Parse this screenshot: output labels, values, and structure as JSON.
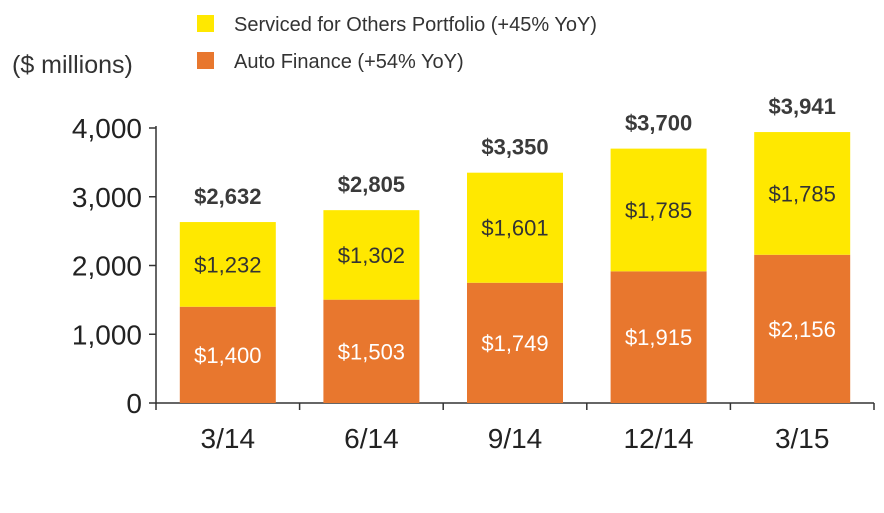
{
  "unit_label": "($ millions)",
  "legend": [
    {
      "label": "Serviced for Others Portfolio (+45% YoY)",
      "color": "#FFE800"
    },
    {
      "label": "Auto Finance (+54% YoY)",
      "color": "#E8772E"
    }
  ],
  "chart_data": {
    "type": "bar",
    "stacked": true,
    "title": "",
    "xlabel": "",
    "ylabel": "($ millions)",
    "ylim": [
      0,
      4000
    ],
    "yticks": [
      0,
      1000,
      2000,
      3000,
      4000
    ],
    "ytick_labels": [
      "0",
      "1,000",
      "2,000",
      "3,000",
      "4,000"
    ],
    "grid": false,
    "legend_position": "top",
    "categories": [
      "3/14",
      "6/14",
      "9/14",
      "12/14",
      "3/15"
    ],
    "series": [
      {
        "name": "Auto Finance (+54% YoY)",
        "color": "#E8772E",
        "label_color": "#FFFFFF",
        "values": [
          1400,
          1503,
          1749,
          1915,
          2156
        ],
        "labels": [
          "$1,400",
          "$1,503",
          "$1,749",
          "$1,915",
          "$2,156"
        ]
      },
      {
        "name": "Serviced for Others Portfolio (+45% YoY)",
        "color": "#FFE800",
        "label_color": "#333333",
        "values": [
          1232,
          1302,
          1601,
          1785,
          1785
        ],
        "labels": [
          "$1,232",
          "$1,302",
          "$1,601",
          "$1,785",
          "$1,785"
        ]
      }
    ],
    "totals": [
      2632,
      2805,
      3350,
      3700,
      3941
    ],
    "total_labels": [
      "$2,632",
      "$2,805",
      "$3,350",
      "$3,700",
      "$3,941"
    ]
  }
}
